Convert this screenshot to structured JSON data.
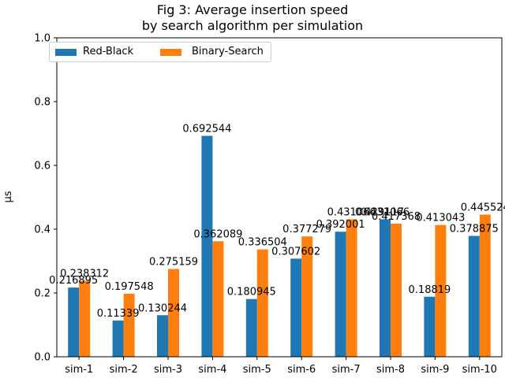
{
  "chart_data": {
    "type": "bar",
    "title": "Fig 3: Average insertion speed",
    "subtitle": "by search algorithm per simulation",
    "xlabel": "",
    "ylabel": "μs",
    "ylim": [
      0,
      1.0
    ],
    "yticks": [
      "0.0",
      "0.2",
      "0.4",
      "0.6",
      "0.8",
      "1.0"
    ],
    "categories": [
      "sim-1",
      "sim-2",
      "sim-3",
      "sim-4",
      "sim-5",
      "sim-6",
      "sim-7",
      "sim-8",
      "sim-9",
      "sim-10"
    ],
    "series": [
      {
        "name": "Red-Black",
        "color": "#1f77b4",
        "values": [
          0.216895,
          0.11339,
          0.130244,
          0.692544,
          0.180945,
          0.307602,
          0.392001,
          0.431066,
          0.18819,
          0.378875
        ],
        "labels": [
          "0.216895",
          "0.11339",
          "0.130244",
          "0.692544",
          "0.180945",
          "0.307602",
          "0.392001",
          "0.431066",
          "0.18819",
          "0.378875"
        ]
      },
      {
        "name": "Binary-Search",
        "color": "#ff7f0e",
        "values": [
          0.238312,
          0.197548,
          0.275159,
          0.362089,
          0.336504,
          0.377279,
          0.431066,
          0.417368,
          0.413043,
          0.445524
        ],
        "labels": [
          "0.238312",
          "0.197548",
          "0.275159",
          "0.362089",
          "0.336504",
          "0.377279",
          "0.431066",
          "0.417368",
          "0.413043",
          "0.445524"
        ]
      }
    ],
    "extra_label": "0.429117",
    "grid": false,
    "legend_position": "top-left"
  }
}
